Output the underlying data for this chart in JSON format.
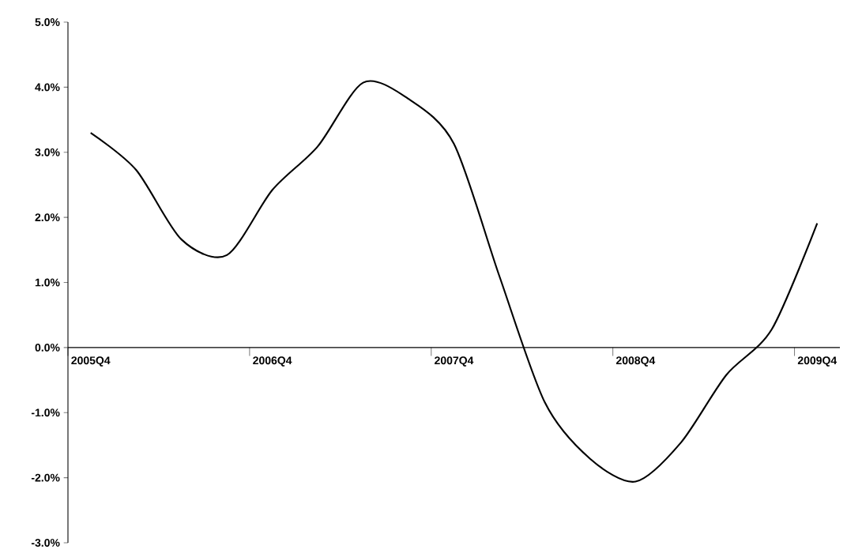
{
  "chart_data": {
    "type": "line",
    "categories": [
      "2005Q4",
      null,
      null,
      null,
      "2006Q4",
      null,
      null,
      null,
      "2007Q4",
      null,
      null,
      null,
      "2008Q4",
      null,
      null,
      null,
      "2009Q4"
    ],
    "series": [
      {
        "color": "#000000",
        "values": [
          3.3,
          2.73,
          1.66,
          1.42,
          2.42,
          3.09,
          4.07,
          3.82,
          3.13,
          1.1,
          -0.84,
          -1.71,
          -2.06,
          -1.46,
          -0.42,
          0.28,
          1.91
        ]
      }
    ],
    "ylim": [
      -3,
      5
    ],
    "yticks": [
      {
        "value": -3,
        "label": "-3.0%"
      },
      {
        "value": -2,
        "label": "-2.0%"
      },
      {
        "value": -1,
        "label": "-1.0%"
      },
      {
        "value": 0,
        "label": "0.0%"
      },
      {
        "value": 1,
        "label": "1.0%"
      },
      {
        "value": 2,
        "label": "2.0%"
      },
      {
        "value": 3,
        "label": "3.0%"
      },
      {
        "value": 4,
        "label": "4.0%"
      },
      {
        "value": 5,
        "label": "5.0%"
      }
    ],
    "grid": false,
    "marker": "none",
    "line_style": "solid"
  }
}
